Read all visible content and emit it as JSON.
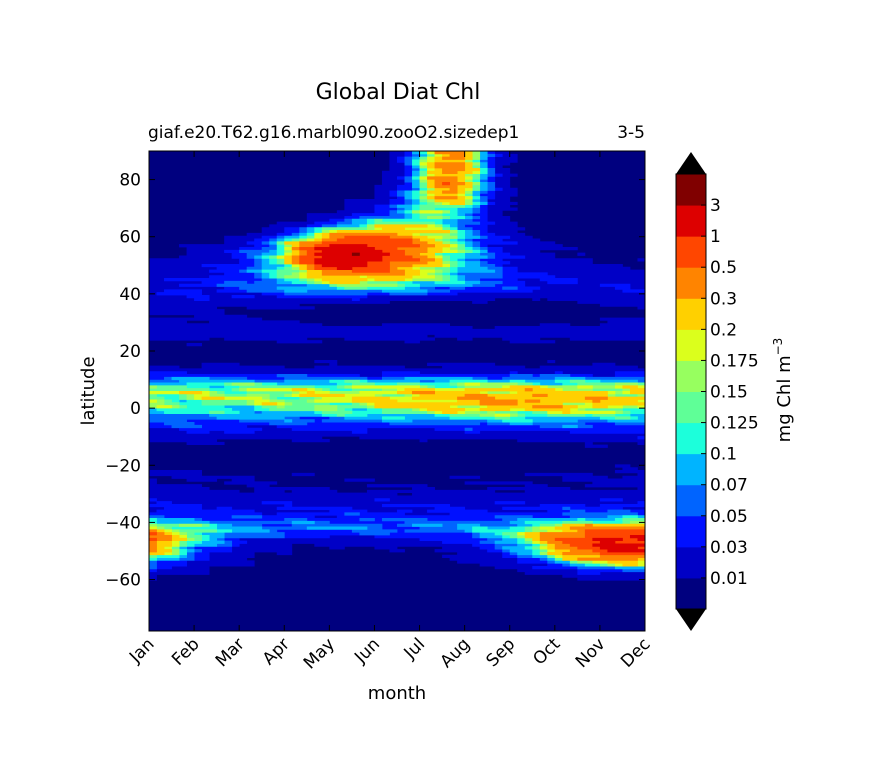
{
  "chart_data": {
    "type": "contourf",
    "title": "Global Diat Chl",
    "subtitle_left": "giaf.e20.T62.g16.marbl090.zooO2.sizedep1",
    "subtitle_right": "3-5",
    "xlabel": "month",
    "ylabel": "latitude",
    "x_ticks": [
      "Jan",
      "Feb",
      "Mar",
      "Apr",
      "May",
      "Jun",
      "Jul",
      "Aug",
      "Sep",
      "Oct",
      "Nov",
      "Dec"
    ],
    "y_ticks": [
      80,
      60,
      40,
      20,
      0,
      -20,
      -40,
      -60
    ],
    "y_tick_labels": [
      "80",
      "60",
      "40",
      "20",
      "0",
      "−20",
      "−40",
      "−60"
    ],
    "ylim": [
      -78,
      90
    ],
    "xlim": [
      0,
      11
    ],
    "colorbar": {
      "label": "mg Chl m",
      "label_sup": "−3",
      "levels": [
        "0.01",
        "0.03",
        "0.05",
        "0.07",
        "0.1",
        "0.125",
        "0.15",
        "0.175",
        "0.2",
        "0.3",
        "0.5",
        "1",
        "3"
      ],
      "colors": [
        "#00007f",
        "#0000c6",
        "#0010ff",
        "#0064ff",
        "#00b4ff",
        "#1cffdb",
        "#5fff97",
        "#97ff5f",
        "#dbff1c",
        "#ffd000",
        "#ff8400",
        "#ff4600",
        "#dd0000",
        "#800000"
      ],
      "extend": "both"
    },
    "features": [
      {
        "name": "northern spring-summer bloom",
        "lat_range": [
          38,
          70
        ],
        "months": [
          "Mar",
          "Sep"
        ],
        "peak_value": "3",
        "peak_month": "May",
        "peak_lat": 53
      },
      {
        "name": "arctic summer bloom",
        "lat_range": [
          70,
          90
        ],
        "months": [
          "Jun",
          "Aug"
        ],
        "peak_value": "1",
        "peak_month": "Jul"
      },
      {
        "name": "southern ocean bloom (austral summer)",
        "lat_range": [
          -60,
          -38
        ],
        "months": [
          "Sep",
          "Feb"
        ],
        "peak_value": "1",
        "peak_month": "Dec",
        "peak_lat": -49
      },
      {
        "name": "equatorial band",
        "lat_range": [
          -12,
          14
        ],
        "months": [
          "Jan",
          "Dec"
        ],
        "peak_value": "0.5",
        "peak_month": "Sep"
      }
    ]
  }
}
